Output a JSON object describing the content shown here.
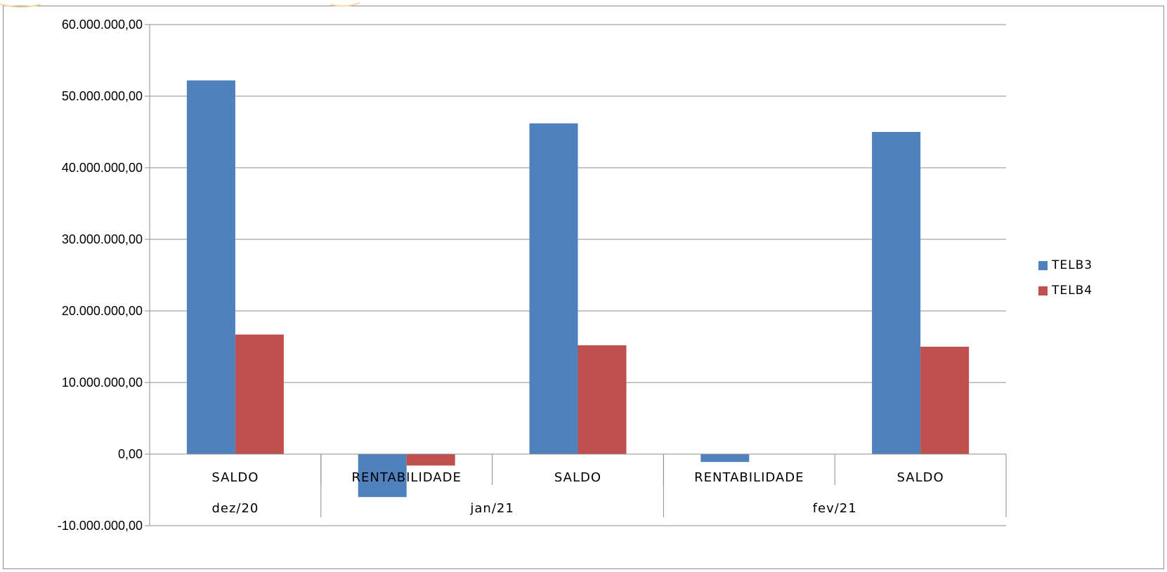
{
  "chart_data": {
    "type": "bar",
    "groups": [
      {
        "label": "dez/20",
        "categories": [
          "SALDO"
        ]
      },
      {
        "label": "jan/21",
        "categories": [
          "RENTABILIDADE",
          "SALDO"
        ]
      },
      {
        "label": "fev/21",
        "categories": [
          "RENTABILIDADE",
          "SALDO"
        ]
      }
    ],
    "categories": [
      "SALDO",
      "RENTABILIDADE",
      "SALDO",
      "RENTABILIDADE",
      "SALDO"
    ],
    "series": [
      {
        "name": "TELB3",
        "color": "#4F81BD",
        "values": [
          52200000,
          -6000000,
          46200000,
          -1100000,
          45000000
        ]
      },
      {
        "name": "TELB4",
        "color": "#C0504D",
        "values": [
          16700000,
          -1600000,
          15200000,
          0,
          15000000
        ]
      }
    ],
    "ylim": [
      -10000000,
      60000000
    ],
    "yticks": [
      -10000000,
      0,
      10000000,
      20000000,
      30000000,
      40000000,
      50000000,
      60000000
    ],
    "ytick_labels": [
      "-10.000.000,00",
      "0,00",
      "10.000.000,00",
      "20.000.000,00",
      "30.000.000,00",
      "40.000.000,00",
      "50.000.000,00",
      "60.000.000,00"
    ],
    "grid": true,
    "legend_position": "right"
  }
}
